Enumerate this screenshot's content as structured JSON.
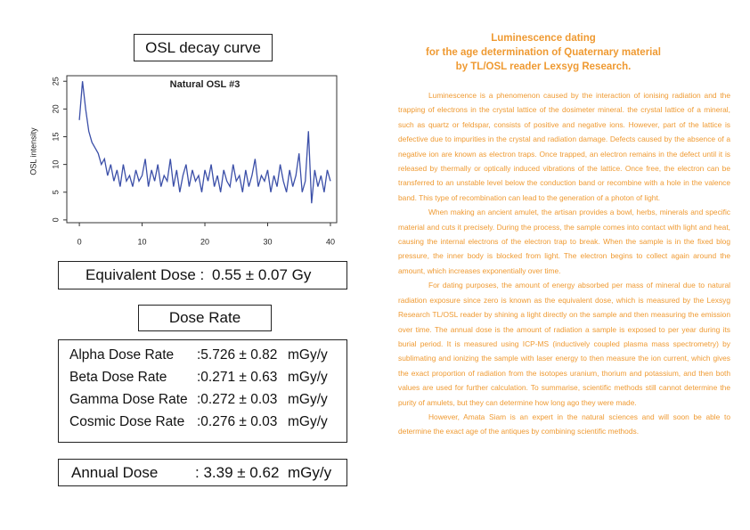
{
  "left": {
    "chart_heading": "OSL decay curve",
    "chart_data": {
      "type": "line",
      "title": "Natural OSL #3",
      "ylabel": "OSL intensity",
      "color": "#3b4fa8",
      "x": [
        0,
        0.5,
        1,
        1.5,
        2,
        2.5,
        3,
        3.5,
        4,
        4.5,
        5,
        5.5,
        6,
        6.5,
        7,
        7.5,
        8,
        8.5,
        9,
        9.5,
        10,
        10.5,
        11,
        11.5,
        12,
        12.5,
        13,
        13.5,
        14,
        14.5,
        15,
        15.5,
        16,
        16.5,
        17,
        17.5,
        18,
        18.5,
        19,
        19.5,
        20,
        20.5,
        21,
        21.5,
        22,
        22.5,
        23,
        23.5,
        24,
        24.5,
        25,
        25.5,
        26,
        26.5,
        27,
        27.5,
        28,
        28.5,
        29,
        29.5,
        30,
        30.5,
        31,
        31.5,
        32,
        32.5,
        33,
        33.5,
        34,
        34.5,
        35,
        35.5,
        36,
        36.5,
        37,
        37.5,
        38,
        38.5,
        39,
        39.5,
        40
      ],
      "values": [
        18,
        25,
        20,
        16,
        14,
        13,
        12,
        10,
        11,
        8,
        10,
        7,
        9,
        6,
        10,
        7,
        8,
        6,
        9,
        7,
        8,
        11,
        6,
        9,
        7,
        10,
        6,
        8,
        7,
        11,
        6,
        9,
        5,
        8,
        10,
        6,
        9,
        7,
        8,
        5,
        9,
        7,
        10,
        6,
        8,
        5,
        9,
        7,
        6,
        10,
        7,
        8,
        5,
        9,
        6,
        8,
        11,
        6,
        8,
        7,
        9,
        5,
        8,
        6,
        10,
        7,
        5,
        9,
        6,
        8,
        12,
        5,
        7,
        16,
        3,
        9,
        6,
        8,
        5,
        9,
        7
      ],
      "xlim": [
        -2,
        41
      ],
      "ylim": [
        -0.5,
        26
      ],
      "xticks": [
        0,
        10,
        20,
        30,
        40
      ],
      "yticks": [
        0,
        5,
        10,
        15,
        20,
        25
      ]
    },
    "equivalent_dose": {
      "label": "Equivalent Dose :",
      "value": "0.55 ± 0.07 Gy"
    },
    "dose_rate_heading": "Dose Rate",
    "dose_rates": [
      {
        "label": "Alpha Dose Rate",
        "value": ":5.726 ± 0.82",
        "unit": "mGy/y"
      },
      {
        "label": "Beta Dose Rate",
        "value": ":0.271 ± 0.63",
        "unit": "mGy/y"
      },
      {
        "label": "Gamma Dose Rate",
        "value": ":0.272 ± 0.03",
        "unit": "mGy/y"
      },
      {
        "label": "Cosmic Dose Rate",
        "value": ":0.276 ± 0.03",
        "unit": "mGy/y"
      }
    ],
    "annual_dose": {
      "label": "Annual Dose",
      "value": ": 3.39 ± 0.62",
      "unit": "mGy/y"
    }
  },
  "right": {
    "title": [
      "Luminescence dating",
      "for the age determination of Quaternary material",
      "by TL/OSL reader Lexsyg Research."
    ],
    "paragraphs": [
      "Luminescence is a phenomenon caused by the interaction of ionising radiation and the trapping of electrons in the crystal lattice of the dosimeter mineral. the crystal lattice of a mineral, such as quartz or feldspar, consists of positive and negative ions. However, part of the lattice is defective due to impurities in the crystal and radiation damage. Defects caused by the absence of a negative ion are known as electron traps. Once trapped, an electron remains in the defect until it is released by thermally or optically induced vibrations of the lattice. Once free, the electron can be transferred to an unstable level below the conduction band or recombine with a hole in the valence band. This type of recombination can lead to the generation of a photon of light.",
      "When making an ancient amulet, the artisan provides a bowl, herbs, minerals and specific material and cuts it precisely. During the process, the sample comes into contact with light and heat, causing the internal electrons of the electron trap to break. When the sample is in the fixed blog pressure, the inner body is blocked from light. The electron begins to collect again around the amount, which increases exponentially over time.",
      "For dating purposes, the amount of energy absorbed per mass of mineral due to natural radiation exposure since zero is known as the equivalent dose, which is measured by the Lexsyg Research TL/OSL reader by shining a light directly on the sample and then measuring the emission over time. The annual dose is the amount of radiation a sample is exposed to per year during its burial period. It is measured using ICP-MS (inductively coupled plasma mass spectrometry) by sublimating and ionizing the sample with laser energy to then measure the ion current, which gives the exact proportion of radiation from the isotopes uranium, thorium and potassium, and then both values are used for further calculation. To summarise, scientific methods still cannot determine the purity of amulets, but they can determine how long ago they were made.",
      "However, Amata Siam is an expert in the natural sciences and will soon be able to determine the exact age of the antiques by combining scientific methods."
    ]
  }
}
